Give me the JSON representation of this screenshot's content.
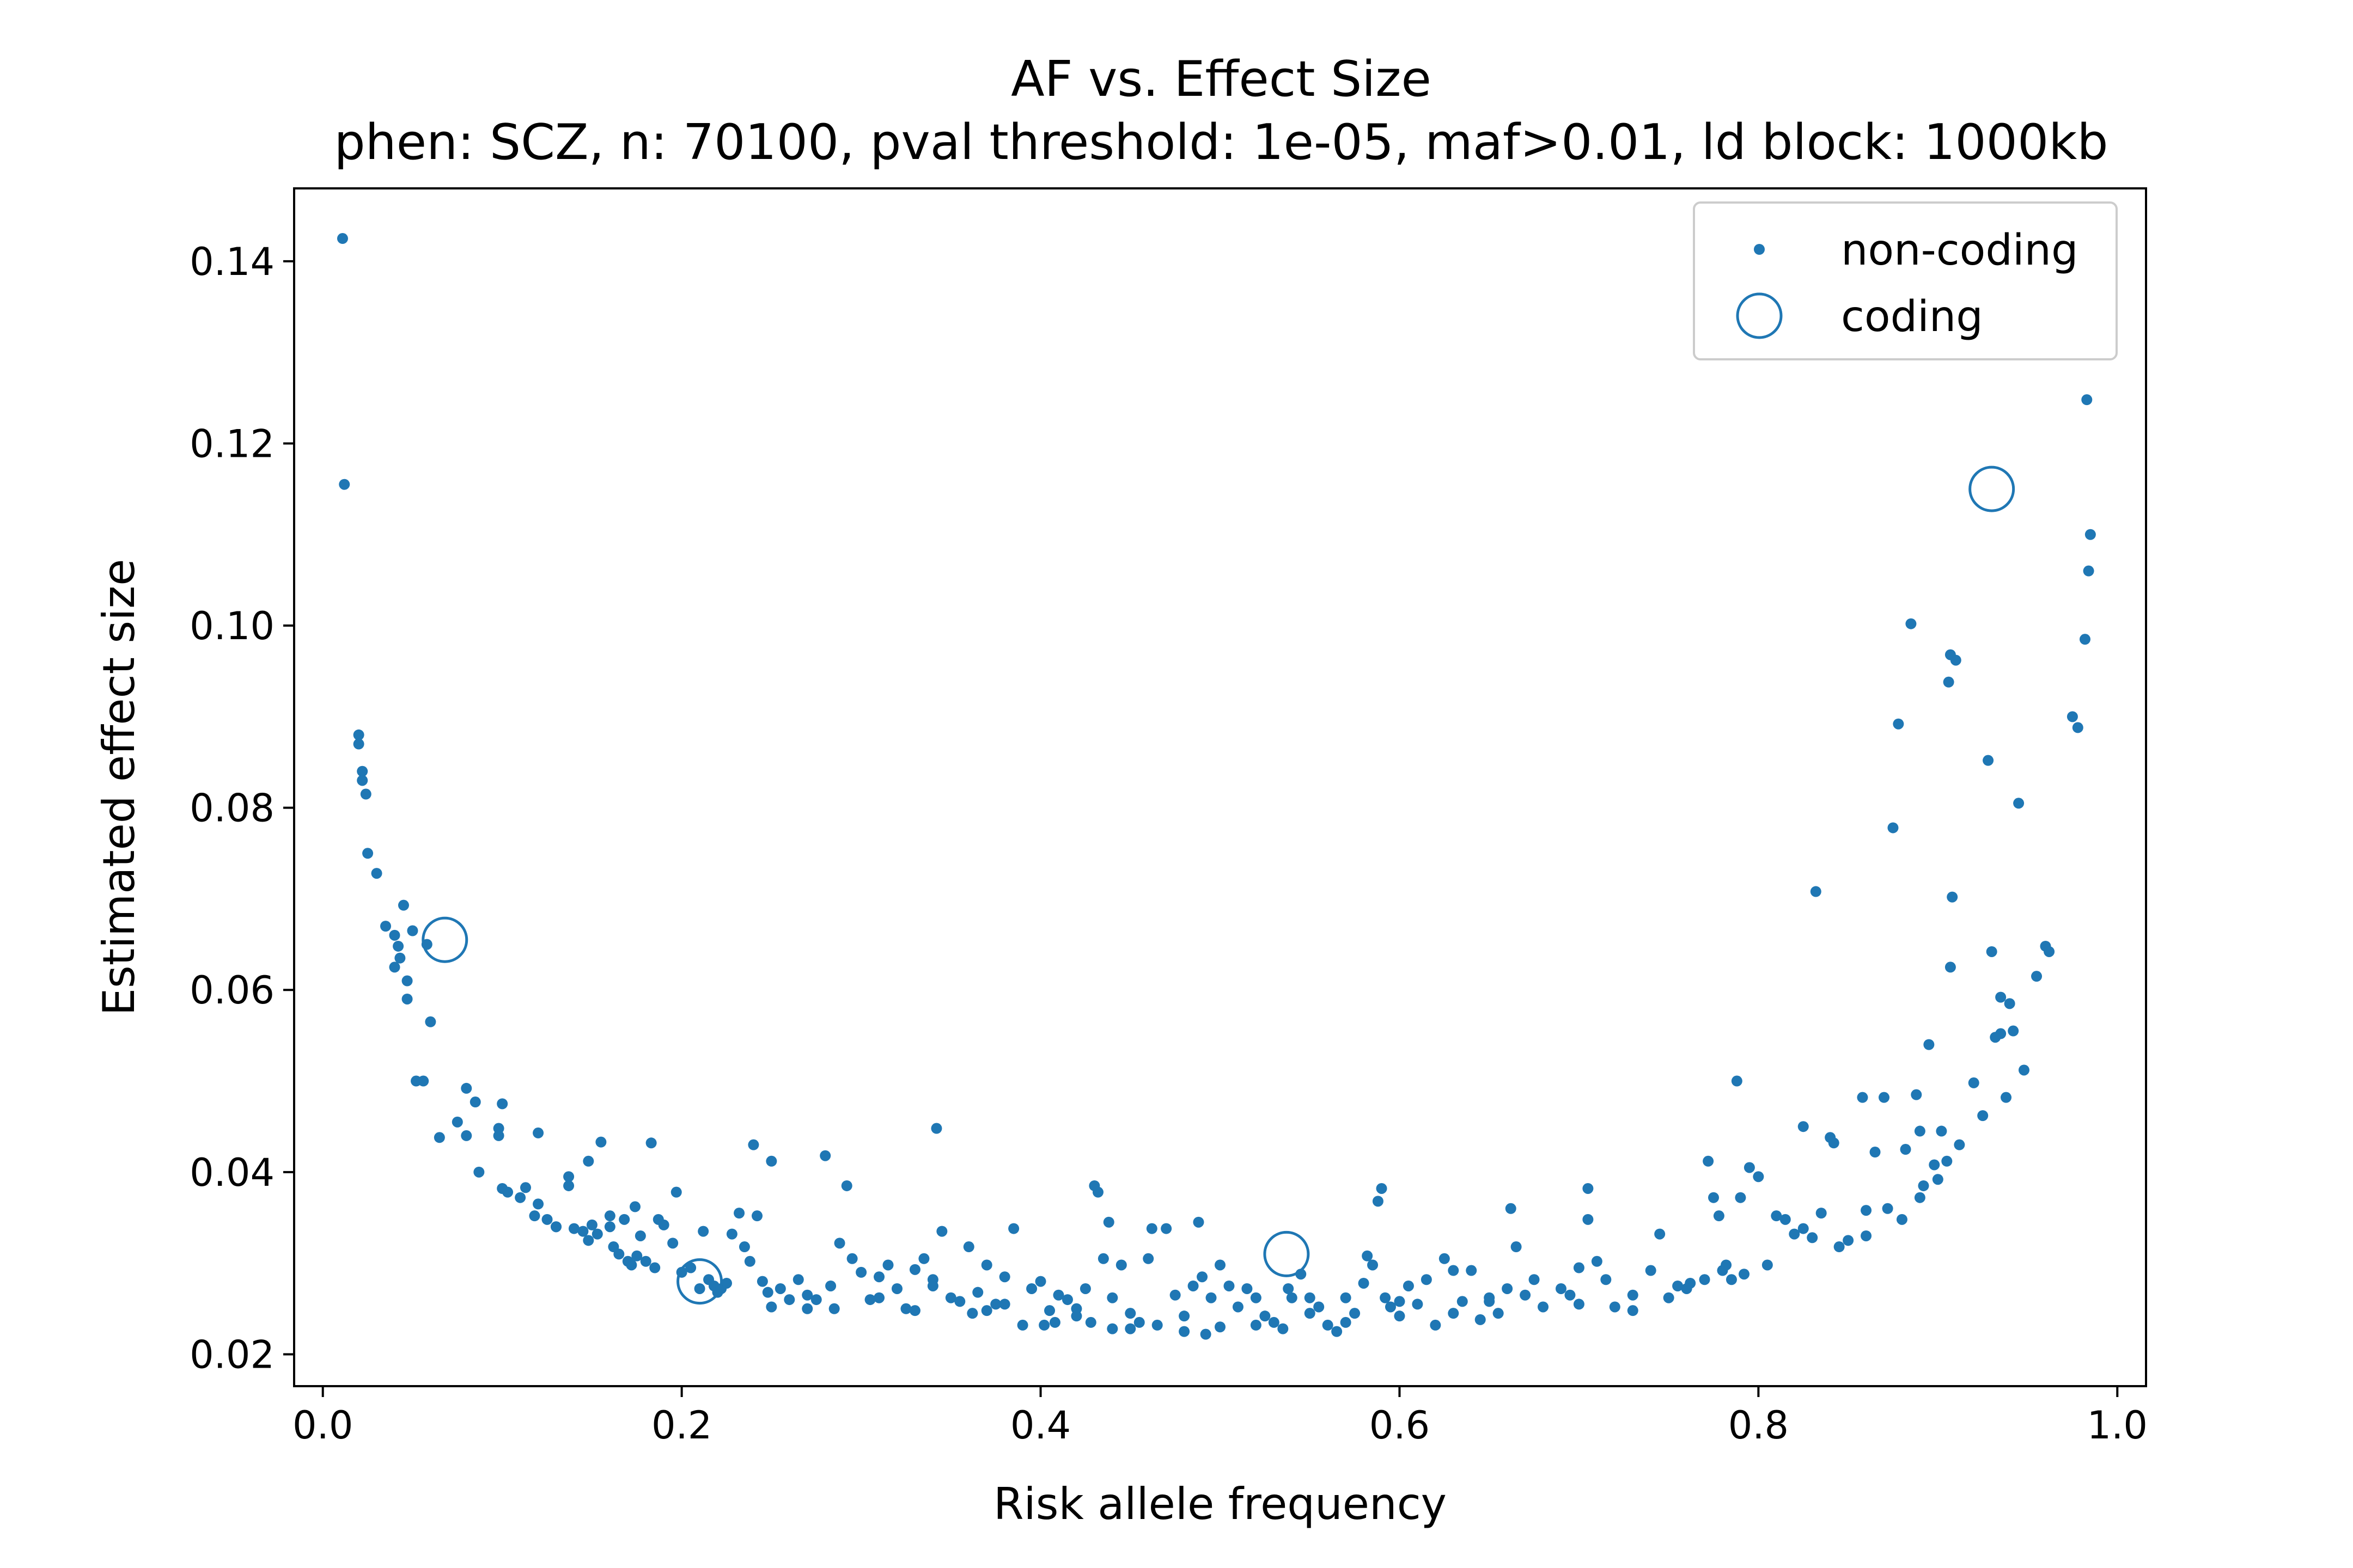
{
  "chart_data": {
    "type": "scatter",
    "title": "AF vs. Effect Size",
    "subtitle": "phen: SCZ, n: 70100, pval threshold: 1e-05, maf>0.01, ld block: 1000kb",
    "xlabel": "Risk allele frequency",
    "ylabel": "Estimated effect size",
    "xlim": [
      -0.016,
      1.016
    ],
    "ylim": [
      0.0165,
      0.148
    ],
    "xticks": [
      "0.0",
      "0.2",
      "0.4",
      "0.6",
      "0.8",
      "1.0"
    ],
    "yticks": [
      "0.02",
      "0.04",
      "0.06",
      "0.08",
      "0.10",
      "0.12",
      "0.14"
    ],
    "grid": false,
    "legend_position": "top-right",
    "series": [
      {
        "name": "non-coding",
        "color": "#1f77b4",
        "marker": "dot",
        "points": [
          [
            0.011,
            0.1425
          ],
          [
            0.012,
            0.1155
          ],
          [
            0.02,
            0.088
          ],
          [
            0.02,
            0.087
          ],
          [
            0.022,
            0.084
          ],
          [
            0.022,
            0.083
          ],
          [
            0.024,
            0.0815
          ],
          [
            0.025,
            0.075
          ],
          [
            0.03,
            0.0728
          ],
          [
            0.035,
            0.067
          ],
          [
            0.04,
            0.066
          ],
          [
            0.042,
            0.0648
          ],
          [
            0.045,
            0.0693
          ],
          [
            0.04,
            0.0625
          ],
          [
            0.043,
            0.0635
          ],
          [
            0.047,
            0.061
          ],
          [
            0.047,
            0.059
          ],
          [
            0.05,
            0.0665
          ],
          [
            0.058,
            0.065
          ],
          [
            0.06,
            0.0565
          ],
          [
            0.052,
            0.05
          ],
          [
            0.056,
            0.05
          ],
          [
            0.065,
            0.0438
          ],
          [
            0.08,
            0.0492
          ],
          [
            0.075,
            0.0455
          ],
          [
            0.08,
            0.044
          ],
          [
            0.085,
            0.0477
          ],
          [
            0.1,
            0.0475
          ],
          [
            0.098,
            0.0448
          ],
          [
            0.098,
            0.044
          ],
          [
            0.12,
            0.0443
          ],
          [
            0.087,
            0.04
          ],
          [
            0.1,
            0.0382
          ],
          [
            0.103,
            0.0378
          ],
          [
            0.11,
            0.0372
          ],
          [
            0.113,
            0.0383
          ],
          [
            0.118,
            0.0352
          ],
          [
            0.125,
            0.0348
          ],
          [
            0.13,
            0.034
          ],
          [
            0.137,
            0.0395
          ],
          [
            0.137,
            0.0385
          ],
          [
            0.14,
            0.0338
          ],
          [
            0.145,
            0.0335
          ],
          [
            0.148,
            0.0325
          ],
          [
            0.15,
            0.0342
          ],
          [
            0.153,
            0.0332
          ],
          [
            0.155,
            0.0433
          ],
          [
            0.148,
            0.0412
          ],
          [
            0.16,
            0.034
          ],
          [
            0.162,
            0.0318
          ],
          [
            0.165,
            0.031
          ],
          [
            0.168,
            0.0348
          ],
          [
            0.17,
            0.0302
          ],
          [
            0.172,
            0.0298
          ],
          [
            0.174,
            0.0362
          ],
          [
            0.177,
            0.033
          ],
          [
            0.18,
            0.0302
          ],
          [
            0.183,
            0.0432
          ],
          [
            0.187,
            0.0348
          ],
          [
            0.19,
            0.0342
          ],
          [
            0.195,
            0.0322
          ],
          [
            0.197,
            0.0378
          ],
          [
            0.2,
            0.029
          ],
          [
            0.205,
            0.0295
          ],
          [
            0.212,
            0.0335
          ],
          [
            0.215,
            0.0282
          ],
          [
            0.218,
            0.0275
          ],
          [
            0.222,
            0.0272
          ],
          [
            0.225,
            0.0278
          ],
          [
            0.228,
            0.0332
          ],
          [
            0.232,
            0.0355
          ],
          [
            0.235,
            0.0318
          ],
          [
            0.238,
            0.0302
          ],
          [
            0.24,
            0.043
          ],
          [
            0.242,
            0.0352
          ],
          [
            0.245,
            0.028
          ],
          [
            0.248,
            0.0268
          ],
          [
            0.25,
            0.0412
          ],
          [
            0.255,
            0.0272
          ],
          [
            0.26,
            0.026
          ],
          [
            0.265,
            0.0282
          ],
          [
            0.27,
            0.0265
          ],
          [
            0.275,
            0.026
          ],
          [
            0.28,
            0.0418
          ],
          [
            0.283,
            0.0275
          ],
          [
            0.285,
            0.025
          ],
          [
            0.288,
            0.0322
          ],
          [
            0.292,
            0.0385
          ],
          [
            0.295,
            0.0305
          ],
          [
            0.3,
            0.029
          ],
          [
            0.305,
            0.026
          ],
          [
            0.31,
            0.0285
          ],
          [
            0.315,
            0.0298
          ],
          [
            0.32,
            0.0272
          ],
          [
            0.325,
            0.025
          ],
          [
            0.33,
            0.0293
          ],
          [
            0.335,
            0.0305
          ],
          [
            0.34,
            0.0282
          ],
          [
            0.342,
            0.0448
          ],
          [
            0.345,
            0.0335
          ],
          [
            0.35,
            0.0262
          ],
          [
            0.355,
            0.0258
          ],
          [
            0.36,
            0.0318
          ],
          [
            0.362,
            0.0245
          ],
          [
            0.365,
            0.0268
          ],
          [
            0.37,
            0.0298
          ],
          [
            0.375,
            0.0255
          ],
          [
            0.38,
            0.0255
          ],
          [
            0.385,
            0.0338
          ],
          [
            0.39,
            0.0232
          ],
          [
            0.395,
            0.0272
          ],
          [
            0.4,
            0.028
          ],
          [
            0.402,
            0.0232
          ],
          [
            0.405,
            0.0248
          ],
          [
            0.408,
            0.0235
          ],
          [
            0.41,
            0.0265
          ],
          [
            0.415,
            0.026
          ],
          [
            0.42,
            0.025
          ],
          [
            0.425,
            0.0272
          ],
          [
            0.428,
            0.0235
          ],
          [
            0.43,
            0.0385
          ],
          [
            0.432,
            0.0378
          ],
          [
            0.435,
            0.0305
          ],
          [
            0.438,
            0.0345
          ],
          [
            0.44,
            0.0262
          ],
          [
            0.445,
            0.0298
          ],
          [
            0.45,
            0.0245
          ],
          [
            0.455,
            0.0235
          ],
          [
            0.46,
            0.0305
          ],
          [
            0.462,
            0.0338
          ],
          [
            0.465,
            0.0232
          ],
          [
            0.47,
            0.0338
          ],
          [
            0.475,
            0.0265
          ],
          [
            0.48,
            0.0242
          ],
          [
            0.485,
            0.0275
          ],
          [
            0.488,
            0.0345
          ],
          [
            0.49,
            0.0285
          ],
          [
            0.492,
            0.0222
          ],
          [
            0.495,
            0.0262
          ],
          [
            0.5,
            0.0298
          ],
          [
            0.505,
            0.0275
          ],
          [
            0.51,
            0.0252
          ],
          [
            0.515,
            0.0272
          ],
          [
            0.52,
            0.0262
          ],
          [
            0.525,
            0.0242
          ],
          [
            0.53,
            0.0235
          ],
          [
            0.535,
            0.0228
          ],
          [
            0.538,
            0.0272
          ],
          [
            0.54,
            0.0262
          ],
          [
            0.545,
            0.0288
          ],
          [
            0.55,
            0.0245
          ],
          [
            0.555,
            0.0252
          ],
          [
            0.56,
            0.0232
          ],
          [
            0.565,
            0.0225
          ],
          [
            0.57,
            0.0262
          ],
          [
            0.575,
            0.0245
          ],
          [
            0.58,
            0.0278
          ],
          [
            0.582,
            0.0308
          ],
          [
            0.585,
            0.0298
          ],
          [
            0.588,
            0.0368
          ],
          [
            0.59,
            0.0382
          ],
          [
            0.592,
            0.0262
          ],
          [
            0.595,
            0.0252
          ],
          [
            0.6,
            0.0242
          ],
          [
            0.605,
            0.0275
          ],
          [
            0.61,
            0.0255
          ],
          [
            0.615,
            0.0282
          ],
          [
            0.62,
            0.0232
          ],
          [
            0.625,
            0.0305
          ],
          [
            0.63,
            0.0292
          ],
          [
            0.635,
            0.0258
          ],
          [
            0.64,
            0.0292
          ],
          [
            0.645,
            0.0238
          ],
          [
            0.65,
            0.0262
          ],
          [
            0.655,
            0.0245
          ],
          [
            0.66,
            0.0272
          ],
          [
            0.662,
            0.036
          ],
          [
            0.665,
            0.0318
          ],
          [
            0.67,
            0.0265
          ],
          [
            0.675,
            0.0282
          ],
          [
            0.68,
            0.0252
          ],
          [
            0.69,
            0.0272
          ],
          [
            0.695,
            0.0265
          ],
          [
            0.7,
            0.0295
          ],
          [
            0.705,
            0.0382
          ],
          [
            0.705,
            0.0348
          ],
          [
            0.71,
            0.0302
          ],
          [
            0.715,
            0.0282
          ],
          [
            0.72,
            0.0252
          ],
          [
            0.73,
            0.0265
          ],
          [
            0.74,
            0.0292
          ],
          [
            0.745,
            0.0332
          ],
          [
            0.75,
            0.0262
          ],
          [
            0.755,
            0.0275
          ],
          [
            0.762,
            0.0278
          ],
          [
            0.77,
            0.0282
          ],
          [
            0.772,
            0.0412
          ],
          [
            0.775,
            0.0372
          ],
          [
            0.778,
            0.0352
          ],
          [
            0.78,
            0.0292
          ],
          [
            0.782,
            0.0298
          ],
          [
            0.785,
            0.0282
          ],
          [
            0.788,
            0.05
          ],
          [
            0.79,
            0.0372
          ],
          [
            0.792,
            0.0288
          ],
          [
            0.795,
            0.0405
          ],
          [
            0.8,
            0.0395
          ],
          [
            0.805,
            0.0298
          ],
          [
            0.81,
            0.0352
          ],
          [
            0.815,
            0.0348
          ],
          [
            0.82,
            0.0332
          ],
          [
            0.825,
            0.0338
          ],
          [
            0.83,
            0.0328
          ],
          [
            0.832,
            0.0708
          ],
          [
            0.835,
            0.0355
          ],
          [
            0.84,
            0.0438
          ],
          [
            0.842,
            0.0432
          ],
          [
            0.845,
            0.0318
          ],
          [
            0.85,
            0.0325
          ],
          [
            0.858,
            0.0482
          ],
          [
            0.86,
            0.0358
          ],
          [
            0.865,
            0.0422
          ],
          [
            0.87,
            0.0482
          ],
          [
            0.872,
            0.036
          ],
          [
            0.875,
            0.0778
          ],
          [
            0.878,
            0.0892
          ],
          [
            0.88,
            0.0348
          ],
          [
            0.882,
            0.0425
          ],
          [
            0.885,
            0.1002
          ],
          [
            0.888,
            0.0485
          ],
          [
            0.89,
            0.0445
          ],
          [
            0.892,
            0.0385
          ],
          [
            0.895,
            0.054
          ],
          [
            0.898,
            0.0408
          ],
          [
            0.9,
            0.0392
          ],
          [
            0.902,
            0.0445
          ],
          [
            0.905,
            0.0412
          ],
          [
            0.906,
            0.0938
          ],
          [
            0.907,
            0.0968
          ],
          [
            0.908,
            0.0702
          ],
          [
            0.91,
            0.0962
          ],
          [
            0.912,
            0.043
          ],
          [
            0.92,
            0.0498
          ],
          [
            0.925,
            0.0462
          ],
          [
            0.928,
            0.0852
          ],
          [
            0.93,
            0.0642
          ],
          [
            0.932,
            0.0548
          ],
          [
            0.935,
            0.0592
          ],
          [
            0.938,
            0.0482
          ],
          [
            0.94,
            0.0585
          ],
          [
            0.942,
            0.0555
          ],
          [
            0.945,
            0.0805
          ],
          [
            0.948,
            0.0512
          ],
          [
            0.955,
            0.0615
          ],
          [
            0.96,
            0.0648
          ],
          [
            0.962,
            0.0642
          ],
          [
            0.975,
            0.09
          ],
          [
            0.978,
            0.0888
          ],
          [
            0.982,
            0.0985
          ],
          [
            0.983,
            0.1248
          ],
          [
            0.984,
            0.106
          ],
          [
            0.985,
            0.11
          ],
          [
            0.907,
            0.0625
          ],
          [
            0.935,
            0.0552
          ],
          [
            0.825,
            0.045
          ],
          [
            0.65,
            0.0258
          ],
          [
            0.5,
            0.023
          ],
          [
            0.48,
            0.0225
          ],
          [
            0.45,
            0.0228
          ],
          [
            0.37,
            0.0248
          ],
          [
            0.33,
            0.0248
          ],
          [
            0.27,
            0.025
          ],
          [
            0.16,
            0.0352
          ],
          [
            0.13,
            0.034
          ],
          [
            0.12,
            0.0365
          ],
          [
            0.175,
            0.0308
          ],
          [
            0.185,
            0.0295
          ],
          [
            0.21,
            0.0272
          ],
          [
            0.22,
            0.0268
          ],
          [
            0.25,
            0.0252
          ],
          [
            0.31,
            0.0262
          ],
          [
            0.34,
            0.0275
          ],
          [
            0.38,
            0.0285
          ],
          [
            0.42,
            0.0242
          ],
          [
            0.44,
            0.0228
          ],
          [
            0.52,
            0.0232
          ],
          [
            0.55,
            0.0262
          ],
          [
            0.57,
            0.0235
          ],
          [
            0.6,
            0.0258
          ],
          [
            0.63,
            0.0245
          ],
          [
            0.7,
            0.0255
          ],
          [
            0.73,
            0.0248
          ],
          [
            0.76,
            0.0272
          ],
          [
            0.86,
            0.033
          ],
          [
            0.89,
            0.0372
          ]
        ]
      },
      {
        "name": "coding",
        "color": "#1f77b4",
        "marker": "open-circle",
        "points": [
          [
            0.068,
            0.0655
          ],
          [
            0.21,
            0.028
          ],
          [
            0.537,
            0.031
          ],
          [
            0.93,
            0.115
          ]
        ]
      }
    ]
  }
}
